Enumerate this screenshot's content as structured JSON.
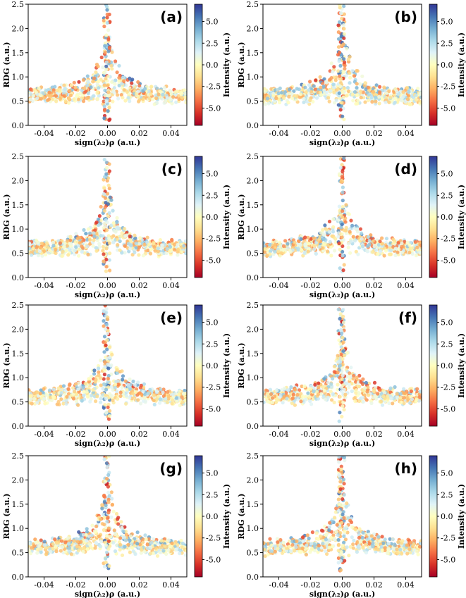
{
  "chart_data": [
    {
      "type": "scatter",
      "panel_label": "(a)",
      "xlabel": "sign(λ₂)ρ (a.u.)",
      "ylabel": "RDG (a.u.)",
      "colorbar_label": "Intensity (a.u.)",
      "xlim": [
        -0.05,
        0.05
      ],
      "ylim": [
        0.0,
        2.5
      ],
      "clim": [
        -7,
        7
      ],
      "xticks": [
        "-0.04",
        "-0.02",
        "0.00",
        "0.02",
        "0.04"
      ],
      "yticks": [
        "0.0",
        "0.5",
        "1.0",
        "1.5",
        "2.0",
        "2.5"
      ],
      "cticks": [
        "5.0",
        "2.5",
        "0.0",
        "-2.5",
        "-5.0"
      ],
      "seed": 11,
      "bias": -0.3
    },
    {
      "type": "scatter",
      "panel_label": "(b)",
      "xlabel": "sign(λ₂)ρ (a.u.)",
      "ylabel": "RDG (a.u.)",
      "colorbar_label": "Intensity (a.u.)",
      "xlim": [
        -0.05,
        0.05
      ],
      "ylim": [
        0.0,
        2.5
      ],
      "clim": [
        -7,
        7
      ],
      "xticks": [
        "-0.04",
        "-0.02",
        "0.00",
        "0.02",
        "0.04"
      ],
      "yticks": [
        "0.0",
        "0.5",
        "1.0",
        "1.5",
        "2.0",
        "2.5"
      ],
      "cticks": [
        "5.0",
        "2.5",
        "0.0",
        "-2.5",
        "-5.0"
      ],
      "seed": 23,
      "bias": 0.2
    },
    {
      "type": "scatter",
      "panel_label": "(c)",
      "xlabel": "sign(λ₂)ρ (a.u.)",
      "ylabel": "RDG (a.u.)",
      "colorbar_label": "Intensity (a.u.)",
      "xlim": [
        -0.05,
        0.05
      ],
      "ylim": [
        0.0,
        2.5
      ],
      "clim": [
        -7,
        7
      ],
      "xticks": [
        "-0.04",
        "-0.02",
        "0.00",
        "0.02",
        "0.04"
      ],
      "yticks": [
        "0.0",
        "0.5",
        "1.0",
        "1.5",
        "2.0",
        "2.5"
      ],
      "cticks": [
        "5.0",
        "2.5",
        "0.0",
        "-2.5",
        "-5.0"
      ],
      "seed": 37,
      "bias": 0.0
    },
    {
      "type": "scatter",
      "panel_label": "(d)",
      "xlabel": "sign(λ₂)ρ (a.u.)",
      "ylabel": "RDG (a.u.)",
      "colorbar_label": "Intensity (a.u.)",
      "xlim": [
        -0.05,
        0.05
      ],
      "ylim": [
        0.0,
        2.5
      ],
      "clim": [
        -7,
        7
      ],
      "xticks": [
        "-0.04",
        "-0.02",
        "0.00",
        "0.02",
        "0.04"
      ],
      "yticks": [
        "0.0",
        "0.5",
        "1.0",
        "1.5",
        "2.0",
        "2.5"
      ],
      "cticks": [
        "5.0",
        "2.5",
        "0.0",
        "-2.5",
        "-5.0"
      ],
      "seed": 41,
      "bias": -0.2
    },
    {
      "type": "scatter",
      "panel_label": "(e)",
      "xlabel": "sign(λ₂)ρ (a.u.)",
      "ylabel": "RDG (a.u.)",
      "colorbar_label": "Intensity (a.u.)",
      "xlim": [
        -0.05,
        0.05
      ],
      "ylim": [
        0.0,
        2.5
      ],
      "clim": [
        -7,
        7
      ],
      "xticks": [
        "-0.04",
        "-0.02",
        "0.00",
        "0.02",
        "0.04"
      ],
      "yticks": [
        "0.0",
        "0.5",
        "1.0",
        "1.5",
        "2.0",
        "2.5"
      ],
      "cticks": [
        "5.0",
        "2.5",
        "0.0",
        "-2.5",
        "-5.0"
      ],
      "seed": 53,
      "bias": 0.0
    },
    {
      "type": "scatter",
      "panel_label": "(f)",
      "xlabel": "sign(λ₂)ρ (a.u.)",
      "ylabel": "RDG (a.u.)",
      "colorbar_label": "Intensity (a.u.)",
      "xlim": [
        -0.05,
        0.05
      ],
      "ylim": [
        0.0,
        2.5
      ],
      "clim": [
        -7,
        7
      ],
      "xticks": [
        "-0.04",
        "-0.02",
        "0.00",
        "0.02",
        "0.04"
      ],
      "yticks": [
        "0.0",
        "0.5",
        "1.0",
        "1.5",
        "2.0",
        "2.5"
      ],
      "cticks": [
        "5.0",
        "2.5",
        "0.0",
        "-2.5",
        "-5.0"
      ],
      "seed": 67,
      "bias": -0.4
    },
    {
      "type": "scatter",
      "panel_label": "(g)",
      "xlabel": "sign(λ₂)ρ (a.u.)",
      "ylabel": "RDG (a.u.)",
      "colorbar_label": "Intensity (a.u.)",
      "xlim": [
        -0.05,
        0.05
      ],
      "ylim": [
        0.0,
        2.5
      ],
      "clim": [
        -7,
        7
      ],
      "xticks": [
        "-0.04",
        "-0.02",
        "0.00",
        "0.02",
        "0.04"
      ],
      "yticks": [
        "0.0",
        "0.5",
        "1.0",
        "1.5",
        "2.0",
        "2.5"
      ],
      "cticks": [
        "5.0",
        "2.5",
        "0.0",
        "-2.5",
        "-5.0"
      ],
      "seed": 79,
      "bias": 0.3
    },
    {
      "type": "scatter",
      "panel_label": "(h)",
      "xlabel": "sign(λ₂)ρ (a.u.)",
      "ylabel": "RDG (a.u.)",
      "colorbar_label": "Intensity (a.u.)",
      "xlim": [
        -0.05,
        0.05
      ],
      "ylim": [
        0.0,
        2.5
      ],
      "clim": [
        -7,
        7
      ],
      "xticks": [
        "-0.04",
        "-0.02",
        "0.00",
        "0.02",
        "0.04"
      ],
      "yticks": [
        "0.0",
        "0.5",
        "1.0",
        "1.5",
        "2.0",
        "2.5"
      ],
      "cticks": [
        "5.0",
        "2.5",
        "0.0",
        "-2.5",
        "-5.0"
      ],
      "seed": 97,
      "bias": -0.1
    }
  ],
  "colormap": [
    "#a50026",
    "#d73027",
    "#f46d43",
    "#fdae61",
    "#fee090",
    "#ffffbf",
    "#e0f3f8",
    "#abd9e9",
    "#74add1",
    "#4575b4",
    "#313695"
  ]
}
